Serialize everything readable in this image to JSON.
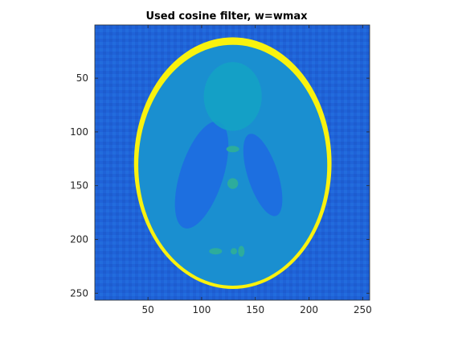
{
  "chart_data": {
    "type": "heatmap",
    "title": "Used cosine filter, w=wmax",
    "xlabel": "",
    "ylabel": "",
    "image_size": [
      256,
      256
    ],
    "xlim": [
      0.5,
      256.5
    ],
    "ylim": [
      0.5,
      256.5
    ],
    "y_direction": "reversed",
    "grid": false,
    "xticks": [
      50,
      100,
      150,
      200,
      250
    ],
    "yticks": [
      50,
      100,
      150,
      200,
      250
    ],
    "xtick_labels": [
      "50",
      "100",
      "150",
      "200",
      "250"
    ],
    "ytick_labels": [
      "50",
      "100",
      "150",
      "200",
      "250"
    ],
    "colormap": "parula",
    "colors": {
      "background_field": "#1f63d8",
      "brain_tissue": "#1a8fd0",
      "skull_ring": "#f9f20e",
      "dark_ellipses": "#1d6fe0",
      "central_ellipse": "#14a3c4",
      "small_features": "#2dac9c"
    },
    "phantom": "Shepp-Logan",
    "ellipses": [
      {
        "role": "outer skull",
        "center": [
          129,
          129
        ],
        "semi_axes": [
          92,
          117
        ],
        "angle": 0
      },
      {
        "role": "brain",
        "center": [
          129,
          131
        ],
        "semi_axes": [
          88,
          112
        ],
        "angle": 0
      },
      {
        "role": "right dark ellipse",
        "center": [
          157,
          140
        ],
        "semi_axes": [
          14,
          40
        ],
        "angle": -18
      },
      {
        "role": "left dark ellipse",
        "center": [
          100,
          140
        ],
        "semi_axes": [
          20,
          52
        ],
        "angle": 18
      },
      {
        "role": "upper central ellipse",
        "center": [
          129,
          67
        ],
        "semi_axes": [
          27,
          32
        ],
        "angle": 0
      },
      {
        "role": "small dot upper",
        "center": [
          129,
          116
        ],
        "semi_axes": [
          6,
          3
        ],
        "angle": 0
      },
      {
        "role": "small dot middle",
        "center": [
          129,
          148
        ],
        "semi_axes": [
          5,
          5
        ],
        "angle": 0
      },
      {
        "role": "small dot lower left",
        "center": [
          113,
          211
        ],
        "semi_axes": [
          6,
          3
        ],
        "angle": 0
      },
      {
        "role": "small dot lower center",
        "center": [
          130,
          211
        ],
        "semi_axes": [
          3,
          3
        ],
        "angle": 0
      },
      {
        "role": "small dot lower right",
        "center": [
          137,
          211
        ],
        "semi_axes": [
          3,
          5
        ],
        "angle": 0
      }
    ]
  }
}
